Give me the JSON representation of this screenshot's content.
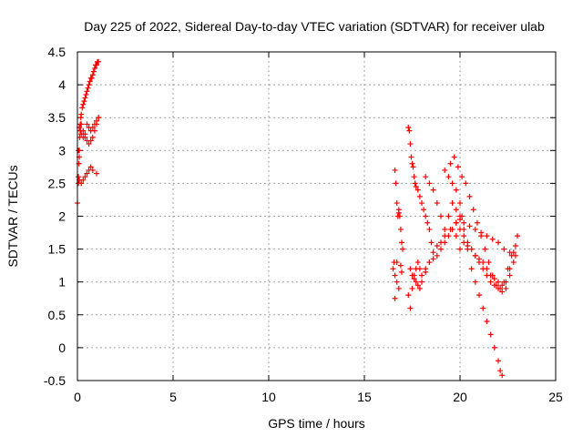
{
  "chart_data": {
    "type": "scatter",
    "title": "Day 225 of 2022, Sidereal Day-to-day VTEC variation (SDTVAR) for receiver ulab",
    "xlabel": "GPS time / hours",
    "ylabel": "SDTVAR / TECUs",
    "xlim": [
      0,
      25
    ],
    "ylim": [
      -0.5,
      4.5
    ],
    "xticks": [
      0,
      5,
      10,
      15,
      20,
      25
    ],
    "xtick_labels": [
      "0",
      "5",
      "10",
      "15",
      "20",
      "25"
    ],
    "yticks": [
      -0.5,
      0,
      0.5,
      1,
      1.5,
      2,
      2.5,
      3,
      3.5,
      4,
      4.5
    ],
    "ytick_labels": [
      "-0.5",
      "0",
      "0.5",
      "1",
      "1.5",
      "2",
      "2.5",
      "3",
      "3.5",
      "4",
      "4.5"
    ],
    "grid": true,
    "marker": "plus",
    "series": [
      {
        "name": "SDTVAR",
        "color": "#ff0000",
        "x": [
          0.0,
          0.05,
          0.08,
          0.1,
          0.12,
          0.15,
          0.18,
          0.2,
          0.25,
          0.3,
          0.35,
          0.4,
          0.45,
          0.5,
          0.55,
          0.6,
          0.65,
          0.7,
          0.75,
          0.8,
          0.85,
          0.9,
          0.95,
          1.0,
          1.05,
          1.1,
          0.1,
          0.15,
          0.2,
          0.3,
          0.4,
          0.5,
          0.6,
          0.7,
          0.8,
          0.9,
          1.0,
          1.1,
          0.05,
          0.1,
          0.15,
          0.2,
          0.3,
          0.4,
          0.5,
          0.6,
          0.7,
          0.8,
          0.9,
          1.0,
          1.1,
          0.05,
          0.1,
          0.2,
          0.3,
          0.4,
          0.5,
          0.6,
          0.7,
          0.8,
          1.0,
          16.5,
          16.55,
          16.6,
          16.65,
          16.7,
          16.75,
          16.8,
          16.85,
          16.9,
          16.95,
          17.0,
          16.6,
          16.7,
          16.8,
          16.9,
          16.95,
          16.7,
          16.8,
          16.6,
          17.3,
          17.35,
          17.4,
          17.45,
          17.5,
          17.55,
          17.6,
          17.65,
          17.7,
          17.8,
          17.9,
          18.0,
          18.1,
          18.2,
          18.3,
          18.4,
          18.5,
          17.3,
          17.4,
          17.5,
          17.6,
          17.7,
          17.8,
          17.9,
          18.0,
          18.2,
          18.4,
          18.6,
          18.8,
          19.0,
          19.2,
          19.4,
          19.6,
          19.8,
          17.4,
          17.5,
          17.6,
          17.7,
          17.8,
          17.9,
          18.0,
          18.2,
          18.4,
          18.6,
          18.8,
          19.0,
          19.2,
          19.5,
          19.8,
          20.0,
          19.2,
          19.4,
          19.6,
          19.8,
          20.0,
          20.1,
          20.2,
          20.4,
          20.6,
          20.8,
          21.0,
          21.2,
          21.4,
          21.6,
          21.8,
          22.0,
          22.1,
          22.2,
          19.5,
          19.7,
          19.9,
          20.1,
          20.3,
          20.5,
          20.7,
          20.9,
          21.1,
          21.3,
          21.5,
          21.7,
          21.9,
          22.1,
          22.3,
          22.5,
          22.7,
          22.9,
          19.8,
          20.0,
          20.2,
          20.4,
          20.6,
          20.8,
          21.0,
          21.2,
          21.4,
          21.6,
          21.8,
          22.0,
          22.2,
          22.4,
          22.6,
          22.8,
          23.0,
          20.0,
          20.2,
          20.4,
          20.6,
          20.8,
          21.0,
          21.2,
          21.4,
          21.6,
          21.8,
          22.0,
          22.2,
          22.4,
          22.6,
          22.8,
          18.2,
          18.4,
          18.6,
          18.8,
          19.0,
          19.2,
          19.4,
          19.6,
          19.8,
          20.0,
          20.2,
          20.5,
          20.8,
          21.1,
          21.4,
          21.7,
          22.0,
          22.3,
          22.6,
          22.9
        ],
        "y": [
          2.2,
          2.5,
          2.8,
          3.0,
          3.2,
          3.4,
          3.5,
          3.55,
          3.65,
          3.7,
          3.75,
          3.8,
          3.85,
          3.9,
          3.95,
          4.0,
          4.05,
          4.1,
          4.1,
          4.15,
          4.2,
          4.25,
          4.3,
          4.3,
          4.35,
          4.35,
          3.35,
          3.3,
          3.25,
          3.2,
          3.2,
          3.15,
          3.1,
          3.15,
          3.2,
          3.3,
          3.4,
          3.5,
          3.0,
          2.9,
          3.3,
          3.4,
          3.3,
          3.25,
          3.4,
          3.35,
          3.3,
          3.35,
          3.4,
          3.45,
          3.5,
          2.6,
          2.55,
          2.5,
          2.55,
          2.6,
          2.65,
          2.7,
          2.75,
          2.7,
          2.65,
          1.2,
          1.3,
          2.7,
          2.5,
          2.2,
          2.0,
          2.1,
          2.0,
          1.8,
          1.6,
          1.5,
          1.1,
          1.0,
          0.9,
          1.25,
          1.15,
          1.3,
          2.05,
          0.75,
          3.35,
          3.3,
          3.1,
          2.9,
          2.8,
          2.75,
          2.6,
          2.5,
          2.45,
          2.4,
          2.3,
          2.2,
          2.1,
          2.0,
          1.9,
          1.8,
          1.6,
          0.8,
          0.6,
          0.9,
          1.1,
          1.2,
          1.3,
          1.2,
          1.1,
          1.2,
          1.3,
          1.35,
          1.4,
          1.5,
          1.6,
          1.7,
          1.8,
          1.7,
          1.2,
          1.1,
          1.05,
          1.0,
          0.95,
          0.9,
          1.0,
          1.15,
          1.3,
          1.45,
          1.55,
          1.6,
          1.7,
          1.8,
          1.9,
          1.95,
          2.7,
          2.6,
          2.5,
          2.4,
          2.2,
          2.0,
          1.8,
          1.5,
          1.2,
          1.0,
          0.8,
          0.6,
          0.4,
          0.2,
          0.0,
          -0.2,
          -0.35,
          -0.42,
          2.8,
          2.9,
          2.75,
          2.6,
          2.5,
          2.3,
          2.1,
          1.9,
          1.7,
          1.5,
          1.3,
          1.1,
          0.95,
          0.9,
          1.0,
          1.2,
          1.4,
          1.55,
          1.9,
          1.8,
          1.7,
          1.6,
          1.5,
          1.4,
          1.3,
          1.2,
          1.1,
          1.0,
          0.95,
          0.9,
          0.85,
          0.9,
          1.1,
          1.3,
          1.7,
          1.5,
          1.6,
          1.55,
          1.5,
          1.4,
          1.35,
          1.3,
          1.2,
          1.1,
          1.05,
          1.0,
          0.95,
          1.0,
          1.2,
          1.45,
          2.6,
          2.5,
          2.4,
          2.2,
          2.0,
          1.8,
          2.0,
          2.2,
          2.1,
          2.0,
          1.9,
          1.85,
          1.8,
          1.75,
          1.7,
          1.65,
          1.6,
          1.5,
          1.45,
          1.4
        ]
      }
    ]
  }
}
